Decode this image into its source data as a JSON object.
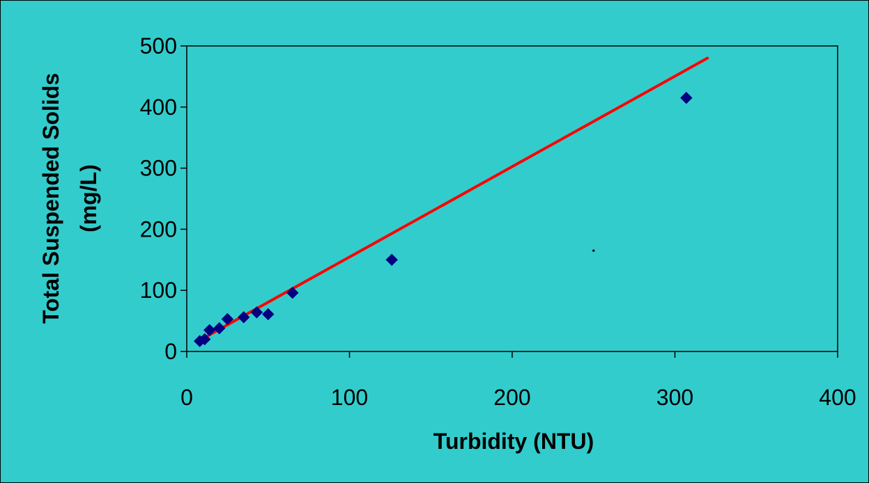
{
  "chart_data": {
    "type": "scatter",
    "title": "",
    "xlabel": "Turbidity (NTU)",
    "ylabel_line1": "Total Suspended Solids",
    "ylabel_line2": "(mg/L)",
    "xlim": [
      0,
      400
    ],
    "ylim": [
      0,
      500
    ],
    "x_ticks": [
      0,
      100,
      200,
      300,
      400
    ],
    "y_ticks": [
      0,
      100,
      200,
      300,
      400,
      500
    ],
    "x_tick_labels": [
      "0",
      "100",
      "200",
      "300",
      "400"
    ],
    "y_tick_labels": [
      "0",
      "100",
      "200",
      "300",
      "400",
      "500"
    ],
    "grid": false,
    "legend": "none",
    "series": [
      {
        "marker": "diamond",
        "color": "#000080",
        "x": [
          8,
          11,
          14,
          20,
          25,
          35,
          43,
          50,
          65,
          126,
          307
        ],
        "y": [
          17,
          20,
          35,
          38,
          53,
          56,
          64,
          61,
          96,
          150,
          415
        ]
      }
    ],
    "trendline": {
      "color": "#ff0000",
      "x": [
        7,
        320
      ],
      "y": [
        17,
        480
      ]
    },
    "stray_point": {
      "x": 250,
      "y": 165
    },
    "colors": {
      "background": "#33cccc",
      "plot_area": "#33cccc"
    }
  }
}
